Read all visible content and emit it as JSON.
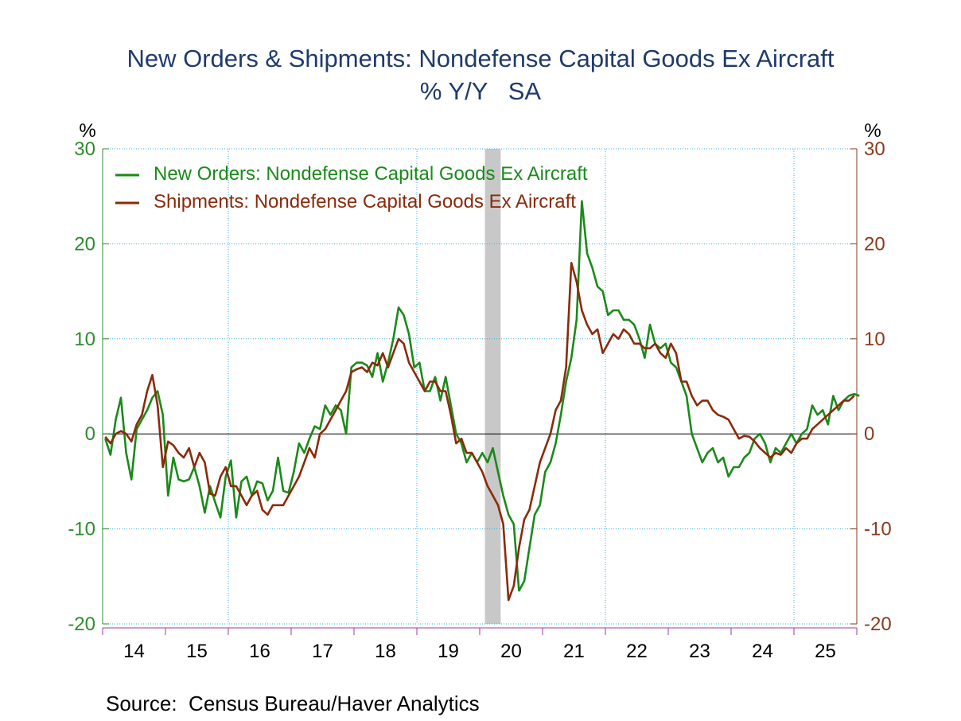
{
  "chart_data": {
    "type": "line",
    "title": "New Orders & Shipments: Nondefense Capital Goods Ex Aircraft",
    "subtitle": "% Y/Y   SA",
    "ylabel_left": "%",
    "ylabel_right": "%",
    "ylim": [
      -20,
      30
    ],
    "yticks": [
      "30",
      "20",
      "10",
      "0",
      "-10",
      "-20"
    ],
    "yticks_right": [
      "30",
      "20",
      "10",
      "0",
      "-10",
      "-20"
    ],
    "x_tick_labels": [
      "14",
      "15",
      "16",
      "17",
      "18",
      "19",
      "20",
      "21",
      "22",
      "23",
      "24",
      "25"
    ],
    "x_start_year": 2014,
    "recession": {
      "start": "2020-02",
      "end": "2020-04"
    },
    "grid": true,
    "legend_placement": "top-left",
    "source": "Source:  Census Bureau/Haver Analytics",
    "colors": {
      "orders": "#1a8a1a",
      "shipments": "#8b2a0a",
      "left_axis": "#2e8b2e",
      "right_axis": "#8b3a1a",
      "grid": "#39aee0",
      "recession": "#c8c8c8",
      "title": "#1f3b6b",
      "x_axis": "#9b3b9b"
    },
    "series": [
      {
        "name": "New Orders: Nondefense Capital Goods Ex Aircraft",
        "key": "orders",
        "start": "2014-01",
        "values": [
          -0.5,
          -2.2,
          1.5,
          3.8,
          -2.0,
          -4.8,
          0.5,
          1.5,
          2.5,
          3.8,
          4.5,
          2.0,
          -6.5,
          -2.5,
          -4.8,
          -5.0,
          -4.8,
          -3.5,
          -5.5,
          -8.3,
          -5.5,
          -7.2,
          -8.8,
          -4.5,
          -2.8,
          -8.8,
          -5.0,
          -4.5,
          -6.5,
          -5.0,
          -5.2,
          -7.0,
          -6.0,
          -2.5,
          -6.0,
          -6.2,
          -4.0,
          -1.0,
          -2.0,
          -0.5,
          0.8,
          0.5,
          3.0,
          2.0,
          3.0,
          2.5,
          0.0,
          7.0,
          7.5,
          7.5,
          7.2,
          6.0,
          8.5,
          5.5,
          7.5,
          10.0,
          13.3,
          12.5,
          10.5,
          7.0,
          7.5,
          4.5,
          4.5,
          6.0,
          3.5,
          6.0,
          3.0,
          0.0,
          -1.0,
          -3.0,
          -2.0,
          -3.0,
          -2.0,
          -3.0,
          -1.5,
          -4.0,
          -6.5,
          -8.5,
          -9.5,
          -16.5,
          -15.5,
          -12.0,
          -8.5,
          -7.5,
          -4.0,
          -3.0,
          -1.0,
          2.0,
          5.5,
          8.0,
          12.0,
          24.5,
          19.0,
          17.5,
          15.5,
          15.0,
          12.5,
          13.0,
          13.0,
          12.0,
          12.0,
          11.5,
          10.0,
          8.0,
          11.5,
          9.5,
          9.0,
          9.5,
          7.5,
          7.0,
          5.5,
          4.0,
          0.0,
          -1.5,
          -3.0,
          -2.0,
          -1.5,
          -3.0,
          -2.5,
          -4.5,
          -3.5,
          -3.5,
          -2.5,
          -2.0,
          -0.5,
          0.0,
          -1.0,
          -3.0,
          -1.5,
          -2.0,
          -1.0,
          0.0,
          -1.0,
          0.0,
          0.5,
          3.0,
          2.0,
          2.5,
          1.0,
          4.0,
          2.5,
          3.5,
          4.0,
          4.2,
          4.0
        ]
      },
      {
        "name": "Shipments: Nondefense Capital Goods Ex Aircraft",
        "key": "shipments",
        "start": "2014-01",
        "values": [
          -0.3,
          -1.0,
          0.0,
          0.3,
          0.0,
          -0.8,
          1.0,
          2.0,
          4.5,
          6.2,
          3.0,
          -3.5,
          -0.8,
          -1.2,
          -2.0,
          -2.5,
          -1.5,
          -3.5,
          -2.0,
          -3.0,
          -6.3,
          -6.5,
          -4.5,
          -3.5,
          -5.5,
          -5.5,
          -6.5,
          -7.5,
          -6.5,
          -6.0,
          -8.0,
          -8.5,
          -7.5,
          -7.5,
          -7.5,
          -6.5,
          -5.5,
          -4.5,
          -3.0,
          -1.5,
          -2.5,
          0.0,
          0.5,
          1.5,
          2.5,
          3.5,
          4.5,
          6.5,
          6.8,
          7.0,
          6.5,
          7.5,
          7.2,
          8.5,
          7.0,
          8.5,
          10.0,
          9.5,
          7.5,
          6.5,
          5.5,
          4.5,
          5.5,
          5.5,
          4.5,
          4.5,
          2.0,
          -1.0,
          -0.5,
          -2.0,
          -2.0,
          -3.0,
          -4.0,
          -5.5,
          -6.5,
          -7.5,
          -9.5,
          -17.5,
          -16.0,
          -12.0,
          -9.0,
          -8.0,
          -5.5,
          -3.0,
          -1.5,
          0.0,
          2.5,
          3.5,
          7.0,
          18.0,
          16.0,
          13.0,
          11.5,
          10.5,
          11.0,
          8.5,
          9.5,
          10.5,
          10.0,
          11.0,
          10.5,
          9.5,
          9.5,
          9.0,
          9.0,
          9.5,
          8.5,
          8.0,
          9.5,
          8.5,
          5.5,
          5.5,
          4.0,
          3.0,
          3.5,
          3.5,
          2.5,
          2.0,
          1.8,
          1.5,
          0.5,
          -0.5,
          -0.2,
          -0.3,
          -0.8,
          -1.5,
          -2.0,
          -2.5,
          -2.0,
          -2.2,
          -1.5,
          -2.0,
          -1.0,
          -0.5,
          -0.5,
          0.5,
          1.0,
          1.5,
          2.0,
          2.5,
          3.0,
          3.5,
          3.5,
          4.0
        ]
      }
    ]
  }
}
